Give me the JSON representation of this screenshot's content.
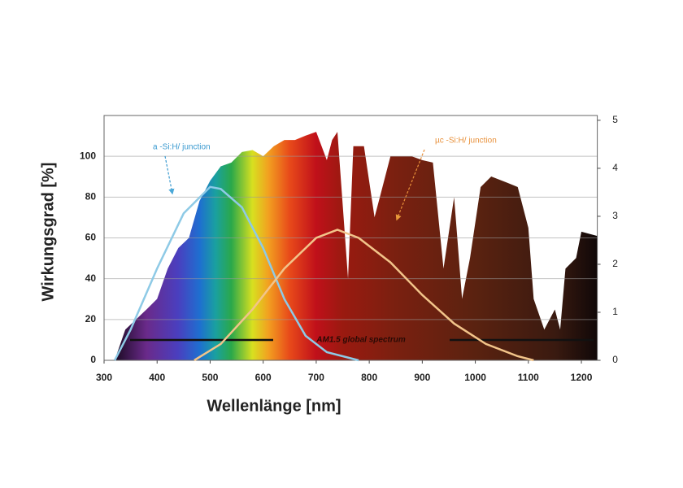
{
  "chart_data": {
    "type": "spectrum",
    "xlabel": "Wellenlänge [nm]",
    "ylabel": "Wirkungsgrad [%]",
    "xlim": [
      300,
      1230
    ],
    "xticks": [
      300,
      400,
      500,
      600,
      700,
      800,
      900,
      1000,
      1100,
      1200
    ],
    "ylim": [
      0,
      120
    ],
    "yticks": [
      0,
      20,
      40,
      60,
      80,
      100
    ],
    "y2lim": [
      0,
      5.1
    ],
    "y2ticks": [
      0,
      1,
      2,
      3,
      4,
      5
    ],
    "grid": true,
    "series": [
      {
        "name": "AM1.5 global spectrum",
        "kind": "area",
        "axis": "y2",
        "color": "#111111",
        "x": [
          320,
          340,
          360,
          380,
          400,
          420,
          440,
          460,
          480,
          500,
          520,
          540,
          560,
          580,
          600,
          620,
          640,
          660,
          680,
          700,
          720,
          730,
          740,
          760,
          770,
          790,
          810,
          820,
          840,
          860,
          880,
          900,
          920,
          940,
          960,
          975,
          990,
          1010,
          1030,
          1060,
          1080,
          1100,
          1110,
          1130,
          1150,
          1160,
          1170,
          1190,
          1200,
          1230
        ],
        "values": [
          0,
          0.64,
          0.85,
          1.06,
          1.28,
          1.91,
          2.34,
          2.55,
          3.32,
          3.74,
          4.04,
          4.12,
          4.34,
          4.38,
          4.25,
          4.46,
          4.59,
          4.59,
          4.68,
          4.76,
          4.17,
          4.59,
          4.76,
          1.7,
          4.46,
          4.46,
          2.98,
          3.4,
          4.25,
          4.25,
          4.25,
          4.17,
          4.12,
          1.91,
          3.4,
          1.28,
          2.13,
          3.61,
          3.83,
          3.7,
          3.61,
          2.76,
          1.28,
          0.64,
          1.06,
          0.64,
          1.91,
          2.13,
          2.68,
          2.59
        ]
      },
      {
        "name": "a -Si:H/  junction",
        "kind": "line",
        "color": "#8ecae6",
        "x": [
          320,
          350,
          400,
          450,
          500,
          520,
          560,
          600,
          640,
          680,
          720,
          780
        ],
        "values": [
          0,
          15,
          45,
          72,
          85,
          84,
          75,
          55,
          30,
          12,
          4,
          0
        ]
      },
      {
        "name": "µc -Si:H/  junction",
        "kind": "line",
        "color": "#f2c48a",
        "x": [
          470,
          520,
          580,
          640,
          700,
          740,
          780,
          840,
          900,
          960,
          1020,
          1080,
          1110
        ],
        "values": [
          0,
          8,
          25,
          45,
          60,
          64,
          60,
          48,
          32,
          18,
          8,
          2,
          0
        ]
      }
    ]
  }
}
